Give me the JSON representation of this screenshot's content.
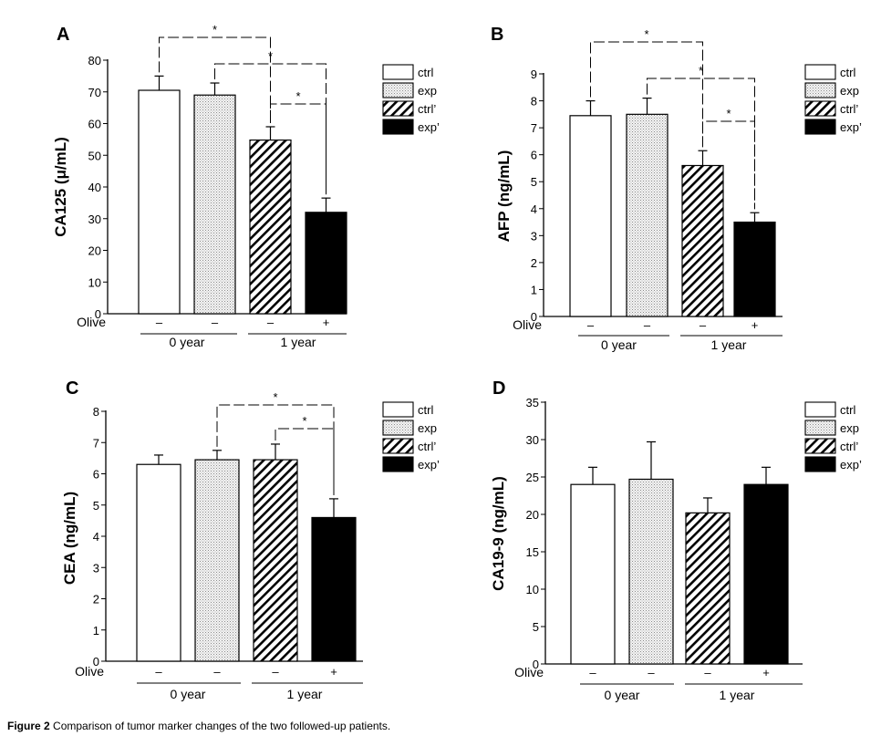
{
  "caption": {
    "label": "Figure 2",
    "text": "Comparison of tumor marker changes of the two followed-up patients."
  },
  "shared": {
    "legend": [
      "ctrl",
      "exp",
      "ctrl’",
      "exp’"
    ],
    "fills": [
      "#ffffff",
      "dots",
      "hatch",
      "#000000"
    ],
    "olive_label": "Olive",
    "olive_signs": [
      "–",
      "–",
      "–",
      "+"
    ],
    "groups": [
      "0 year",
      "1 year"
    ]
  },
  "chart_data": [
    {
      "panel": "A",
      "type": "bar",
      "ylabel": "CA125 (μ/mL)",
      "ylim": [
        0,
        80
      ],
      "yticks": [
        0,
        10,
        20,
        30,
        40,
        50,
        60,
        70,
        80
      ],
      "categories": [
        "ctrl",
        "exp",
        "ctrl’",
        "exp’"
      ],
      "values": [
        70.5,
        69,
        54.8,
        32
      ],
      "errors": [
        4.5,
        3.8,
        4.2,
        4.5
      ],
      "significance": [
        {
          "from": 0,
          "to": 2,
          "label": "*"
        },
        {
          "from": 1,
          "to": 3,
          "label": "*"
        },
        {
          "from": 2,
          "to": 3,
          "label": "*"
        }
      ]
    },
    {
      "panel": "B",
      "type": "bar",
      "ylabel": "AFP (ng/mL)",
      "ylim": [
        0,
        9
      ],
      "yticks": [
        0,
        1,
        2,
        3,
        4,
        5,
        6,
        7,
        8,
        9
      ],
      "categories": [
        "ctrl",
        "exp",
        "ctrl’",
        "exp’"
      ],
      "values": [
        7.45,
        7.5,
        5.6,
        3.5
      ],
      "errors": [
        0.55,
        0.6,
        0.55,
        0.35
      ],
      "significance": [
        {
          "from": 0,
          "to": 2,
          "label": "*"
        },
        {
          "from": 1,
          "to": 3,
          "label": "*"
        },
        {
          "from": 2,
          "to": 3,
          "label": "*"
        }
      ]
    },
    {
      "panel": "C",
      "type": "bar",
      "ylabel": "CEA (ng/mL)",
      "ylim": [
        0,
        8
      ],
      "yticks": [
        0,
        1,
        2,
        3,
        4,
        5,
        6,
        7,
        8
      ],
      "categories": [
        "ctrl",
        "exp",
        "ctrl’",
        "exp’"
      ],
      "values": [
        6.3,
        6.45,
        6.45,
        4.6
      ],
      "errors": [
        0.3,
        0.3,
        0.5,
        0.6
      ],
      "significance": [
        {
          "from": 1,
          "to": 3,
          "label": "*"
        },
        {
          "from": 2,
          "to": 3,
          "label": "*"
        }
      ]
    },
    {
      "panel": "D",
      "type": "bar",
      "ylabel": "CA19-9 (ng/mL)",
      "ylim": [
        0,
        35
      ],
      "yticks": [
        0,
        5,
        10,
        15,
        20,
        25,
        30,
        35
      ],
      "categories": [
        "ctrl",
        "exp",
        "ctrl’",
        "exp’"
      ],
      "values": [
        24,
        24.7,
        20.2,
        24
      ],
      "errors": [
        2.3,
        5,
        2,
        2.3
      ],
      "significance": []
    }
  ]
}
